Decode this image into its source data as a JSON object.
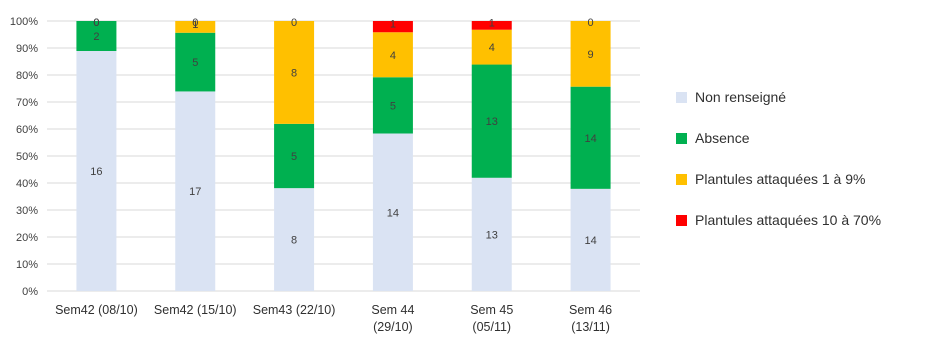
{
  "chart_data": {
    "type": "bar",
    "stacked": "percent",
    "title": "",
    "xlabel": "",
    "ylabel": "",
    "ylim": [
      0,
      100
    ],
    "y_unit": "%",
    "y_ticks": [
      "0%",
      "10%",
      "20%",
      "30%",
      "40%",
      "50%",
      "60%",
      "70%",
      "80%",
      "90%",
      "100%"
    ],
    "grid": true,
    "legend_position": "right",
    "categories": [
      [
        "Sem42 (08/10)"
      ],
      [
        "Sem42 (15/10)"
      ],
      [
        "Sem43 (22/10)"
      ],
      [
        "Sem 44",
        "(29/10)"
      ],
      [
        "Sem 45",
        "(05/11)"
      ],
      [
        "Sem 46",
        "(13/11)"
      ]
    ],
    "series": [
      {
        "name": "Non renseigné",
        "color": "#dae3f3",
        "values": [
          16,
          17,
          8,
          14,
          13,
          14
        ]
      },
      {
        "name": "Absence",
        "color": "#00b050",
        "values": [
          2,
          5,
          5,
          5,
          13,
          14
        ]
      },
      {
        "name": "Plantules attaquées 1 à 9%",
        "color": "#ffc000",
        "values": [
          0,
          1,
          8,
          4,
          4,
          9
        ]
      },
      {
        "name": "Plantules attaquées 10 à 70%",
        "color": "#ff0000",
        "values": [
          0,
          0,
          0,
          1,
          1,
          0
        ]
      }
    ]
  }
}
